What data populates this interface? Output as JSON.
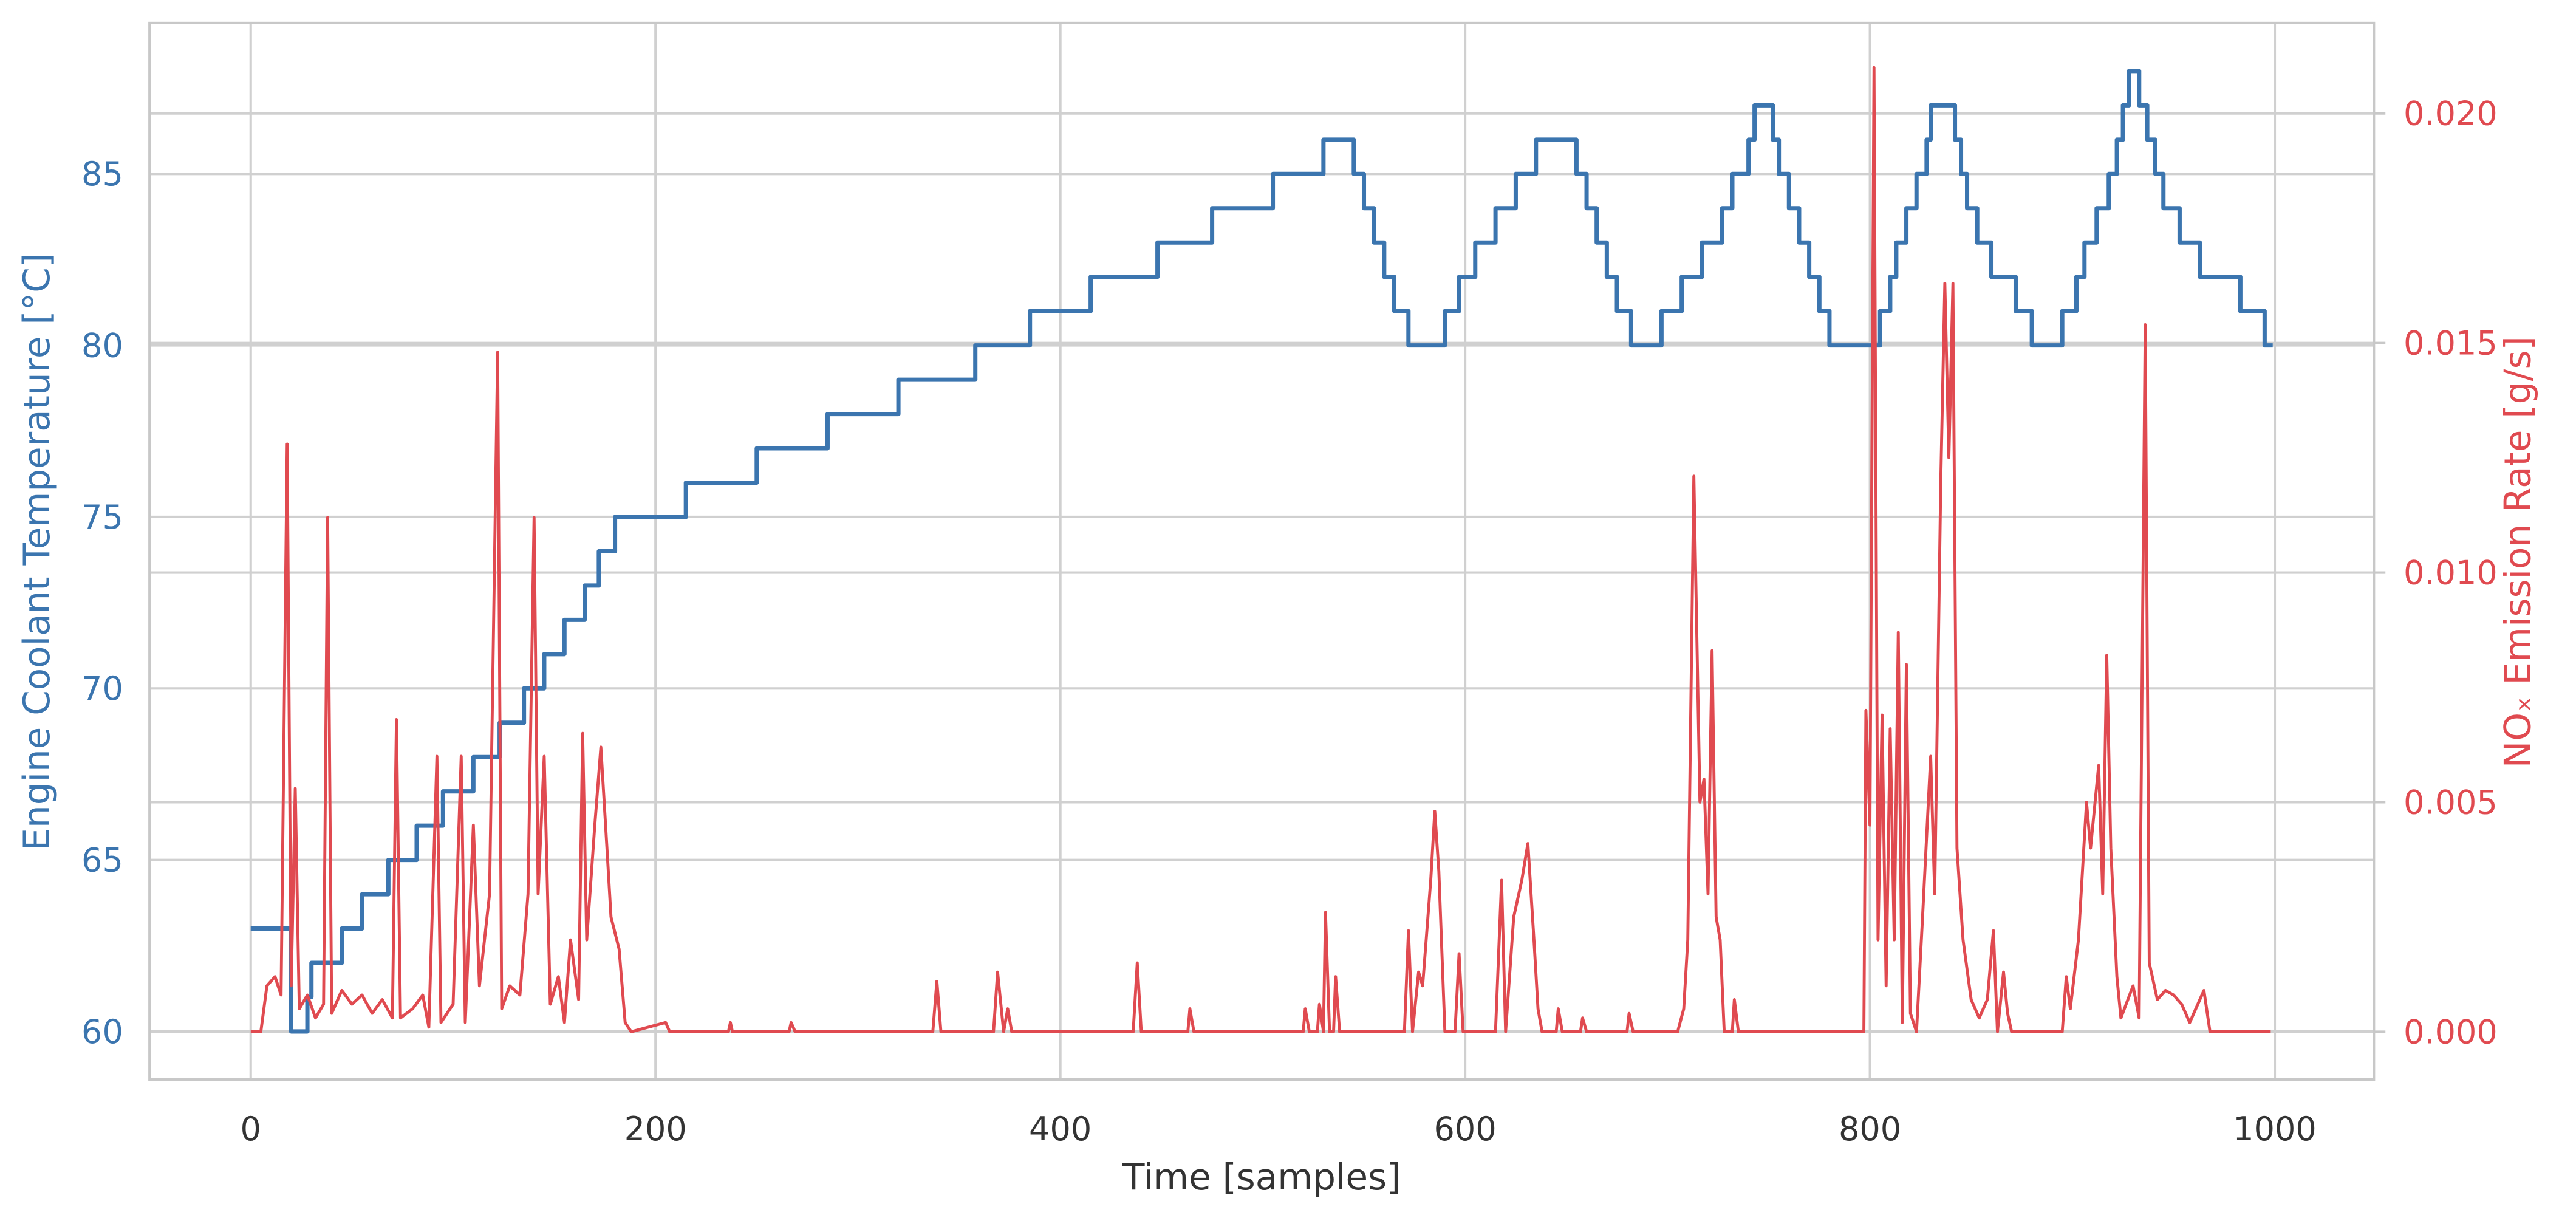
{
  "chart_data": {
    "type": "line",
    "xlabel": "Time [samples]",
    "ylabel": "Engine Coolant Temperature [°C]",
    "y2label": "NOₓ Emission Rate [g/s]",
    "xlim": [
      -50,
      1049
    ],
    "ylim": [
      58.6,
      89.4
    ],
    "y2lim": [
      -0.00104,
      0.02197
    ],
    "xticks": [
      0,
      200,
      400,
      600,
      800,
      1000
    ],
    "yticks": [
      60,
      65,
      70,
      75,
      80,
      85
    ],
    "y2ticks": [
      {
        "value": 0,
        "label": "0.000"
      },
      {
        "value": 0.005,
        "label": "0.005"
      },
      {
        "value": 0.01,
        "label": "0.010"
      },
      {
        "value": 0.015,
        "label": "0.015"
      },
      {
        "value": 0.02,
        "label": "0.020"
      }
    ],
    "grid": true,
    "ycolor": "#3b75af",
    "y2color": "#e04a50",
    "series": [
      {
        "name": "Engine Coolant Temperature",
        "color": "#3b75af",
        "step": "post",
        "axis": "y",
        "x": [
          0,
          20,
          28,
          30,
          33,
          45,
          55,
          68,
          82,
          95,
          110,
          123,
          135,
          145,
          155,
          165,
          172,
          180,
          215,
          250,
          285,
          320,
          358,
          385,
          415,
          448,
          475,
          505,
          530,
          545,
          550,
          555,
          560,
          565,
          572,
          590,
          597,
          605,
          615,
          625,
          635,
          655,
          660,
          665,
          670,
          675,
          682,
          697,
          707,
          717,
          727,
          732,
          740,
          743,
          752,
          755,
          760,
          765,
          770,
          775,
          780,
          805,
          810,
          813,
          818,
          823,
          828,
          830,
          842,
          845,
          848,
          853,
          860,
          872,
          880,
          895,
          902,
          906,
          912,
          918,
          922,
          925,
          928,
          933,
          937,
          941,
          945,
          953,
          963,
          983,
          995,
          999
        ],
        "values": [
          63,
          60,
          61,
          62,
          62,
          63,
          64,
          65,
          66,
          67,
          68,
          69,
          70,
          71,
          72,
          73,
          74,
          75,
          76,
          77,
          78,
          79,
          80,
          81,
          82,
          83,
          84,
          85,
          86,
          85,
          84,
          83,
          82,
          81,
          80,
          81,
          82,
          83,
          84,
          85,
          86,
          85,
          84,
          83,
          82,
          81,
          80,
          81,
          82,
          83,
          84,
          85,
          86,
          87,
          86,
          85,
          84,
          83,
          82,
          81,
          80,
          81,
          82,
          83,
          84,
          85,
          86,
          87,
          86,
          85,
          84,
          83,
          82,
          81,
          80,
          81,
          82,
          83,
          84,
          85,
          86,
          87,
          88,
          87,
          86,
          85,
          84,
          83,
          82,
          81,
          80,
          80
        ]
      },
      {
        "name": "NOₓ Emission Rate",
        "color": "#e04a50",
        "axis": "y2",
        "x": [
          0,
          5,
          8,
          12,
          15,
          18,
          20,
          22,
          24,
          28,
          32,
          36,
          38,
          40,
          45,
          50,
          55,
          60,
          65,
          70,
          72,
          74,
          80,
          85,
          88,
          92,
          94,
          100,
          104,
          106,
          110,
          113,
          118,
          122,
          124,
          128,
          133,
          137,
          140,
          142,
          145,
          148,
          152,
          155,
          158,
          162,
          164,
          166,
          170,
          173,
          176,
          178,
          182,
          185,
          188,
          205,
          207,
          236,
          237,
          238,
          266,
          267,
          269,
          337,
          339,
          341,
          367,
          369,
          372,
          374,
          376,
          436,
          438,
          440,
          463,
          464,
          466,
          520,
          521,
          523,
          527,
          528,
          530,
          531,
          533,
          535,
          536,
          538,
          570,
          572,
          574,
          577,
          579,
          583,
          585,
          587,
          590,
          595,
          597,
          599,
          615,
          618,
          620,
          624,
          628,
          631,
          634,
          636,
          638,
          645,
          646,
          648,
          657,
          658,
          660,
          680,
          681,
          683,
          705,
          708,
          710,
          713,
          716,
          718,
          720,
          722,
          724,
          726,
          728,
          732,
          733,
          735,
          797,
          798,
          800,
          802,
          804,
          806,
          808,
          810,
          812,
          814,
          816,
          818,
          820,
          823,
          826,
          830,
          832,
          835,
          837,
          839,
          841,
          843,
          846,
          850,
          854,
          858,
          861,
          863,
          866,
          868,
          870,
          895,
          897,
          899,
          903,
          907,
          909,
          913,
          915,
          917,
          919,
          922,
          924,
          930,
          933,
          936,
          938,
          942,
          946,
          950,
          954,
          958,
          962,
          965,
          968,
          998
        ],
        "values": [
          0,
          0,
          0.001,
          0.0012,
          0.0008,
          0.0128,
          0.001,
          0.0053,
          0.0005,
          0.0008,
          0.0003,
          0.0006,
          0.0112,
          0.0004,
          0.0009,
          0.0006,
          0.0008,
          0.0004,
          0.0007,
          0.0003,
          0.0068,
          0.0003,
          0.0005,
          0.0008,
          0.0001,
          0.006,
          0.0002,
          0.0006,
          0.006,
          0.0002,
          0.0045,
          0.001,
          0.003,
          0.0148,
          0.0005,
          0.001,
          0.0008,
          0.003,
          0.0112,
          0.003,
          0.006,
          0.0006,
          0.0012,
          0.0002,
          0.002,
          0.0007,
          0.0065,
          0.002,
          0.0045,
          0.0062,
          0.004,
          0.0025,
          0.0018,
          0.0002,
          0,
          0.0002,
          0,
          0,
          0.0002,
          0,
          0,
          0.0002,
          0,
          0,
          0.0011,
          0,
          0,
          0.0013,
          0,
          0.0005,
          0,
          0,
          0.0015,
          0,
          0,
          0.0005,
          0,
          0,
          0.0005,
          0,
          0,
          0.0006,
          0,
          0.0026,
          0,
          0,
          0.0012,
          0,
          0,
          0.0022,
          0,
          0.0013,
          0.001,
          0.0033,
          0.0048,
          0.0035,
          0,
          0,
          0.0017,
          0,
          0,
          0.0033,
          0,
          0.0025,
          0.0033,
          0.0041,
          0.002,
          0.0005,
          0,
          0,
          0.0005,
          0,
          0,
          0.0003,
          0,
          0,
          0.0004,
          0,
          0,
          0.0005,
          0.002,
          0.0121,
          0.005,
          0.0055,
          0.003,
          0.0083,
          0.0025,
          0.002,
          0,
          0,
          0.0007,
          0,
          0,
          0.007,
          0.0045,
          0.021,
          0.002,
          0.0069,
          0.001,
          0.0066,
          0.002,
          0.0087,
          0.0002,
          0.008,
          0.0004,
          0,
          0.0025,
          0.006,
          0.003,
          0.012,
          0.0163,
          0.0125,
          0.0163,
          0.004,
          0.002,
          0.0007,
          0.0003,
          0.0007,
          0.0022,
          0,
          0.0013,
          0.0004,
          0,
          0,
          0.0012,
          0.0005,
          0.002,
          0.005,
          0.004,
          0.0058,
          0.003,
          0.0082,
          0.004,
          0.0012,
          0.0003,
          0.001,
          0.0003,
          0.0154,
          0.0015,
          0.0007,
          0.0009,
          0.0008,
          0.0006,
          0.0002,
          0.0006,
          0.0009,
          0,
          0
        ]
      }
    ]
  }
}
